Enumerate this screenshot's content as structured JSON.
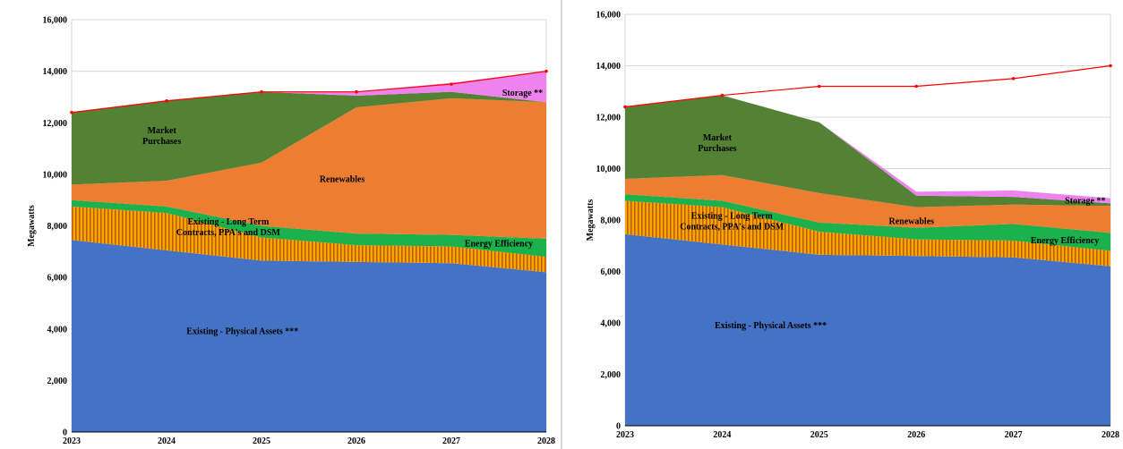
{
  "colors": {
    "physical": "#4472C4",
    "contracts_a": "#F2A900",
    "contracts_b": "#C55A11",
    "efficiency": "#1BB14C",
    "renewables": "#ED7D31",
    "market": "#548235",
    "storage": "#EE82EE",
    "load": "#FF0000",
    "grid": "#D9D9D9"
  },
  "chart_data": [
    {
      "type": "area",
      "stacked": true,
      "title": "",
      "xlabel": "",
      "ylabel": "Megawatts",
      "x": [
        "2023",
        "2024",
        "2025",
        "2026",
        "2027",
        "2028"
      ],
      "ylim": [
        0,
        16000
      ],
      "yticks": [
        "0",
        "2,000",
        "4,000",
        "6,000",
        "8,000",
        "10,000",
        "12,000",
        "14,000",
        "16,000"
      ],
      "grid": true,
      "series": [
        {
          "key": "physical",
          "values": [
            7450,
            7050,
            6650,
            6600,
            6550,
            6200
          ]
        },
        {
          "key": "contracts",
          "values": [
            1300,
            1450,
            900,
            650,
            650,
            600
          ]
        },
        {
          "key": "efficiency",
          "values": [
            250,
            250,
            450,
            450,
            450,
            700
          ]
        },
        {
          "key": "renewables",
          "values": [
            600,
            1000,
            2450,
            4900,
            5300,
            5300
          ]
        },
        {
          "key": "market",
          "values": [
            2800,
            3100,
            2750,
            450,
            250,
            0
          ]
        },
        {
          "key": "storage",
          "values": [
            0,
            0,
            0,
            150,
            350,
            1200
          ]
        }
      ],
      "load_line": {
        "values": [
          12400,
          12850,
          13200,
          13200,
          13500,
          14000
        ]
      },
      "labels": {
        "physical": "Existing - Physical Assets ***",
        "contracts": [
          "Existing - Long Term",
          "Contracts, PPA's and DSM"
        ],
        "efficiency": "Energy Efficiency",
        "renewables": "Renewables",
        "market": [
          "Market",
          "Purchases"
        ],
        "storage": "Storage **"
      }
    },
    {
      "type": "area",
      "stacked": true,
      "title": "",
      "xlabel": "",
      "ylabel": "Megawatts",
      "x": [
        "2023",
        "2024",
        "2025",
        "2026",
        "2027",
        "2028"
      ],
      "ylim": [
        0,
        16000
      ],
      "yticks": [
        "0",
        "2,000",
        "4,000",
        "6,000",
        "8,000",
        "10,000",
        "12,000",
        "14,000",
        "16,000"
      ],
      "grid": true,
      "series": [
        {
          "key": "physical",
          "values": [
            7450,
            7050,
            6650,
            6600,
            6550,
            6200
          ]
        },
        {
          "key": "contracts",
          "values": [
            1300,
            1450,
            900,
            650,
            650,
            600
          ]
        },
        {
          "key": "efficiency",
          "values": [
            250,
            250,
            350,
            450,
            650,
            700
          ]
        },
        {
          "key": "renewables",
          "values": [
            600,
            1000,
            1150,
            800,
            750,
            1050
          ]
        },
        {
          "key": "market",
          "values": [
            2800,
            3100,
            2750,
            450,
            300,
            100
          ]
        },
        {
          "key": "storage",
          "values": [
            0,
            0,
            0,
            150,
            250,
            200
          ]
        }
      ],
      "load_line": {
        "values": [
          12400,
          12850,
          13200,
          13200,
          13500,
          14000
        ]
      },
      "labels": {
        "physical": "Existing - Physical Assets ***",
        "contracts": [
          "Existing - Long Term",
          "Contracts, PPA's and DSM"
        ],
        "efficiency": "Energy Efficiency",
        "renewables": "Renewables",
        "market": [
          "Market",
          "Purchases"
        ],
        "storage": "Storage **"
      }
    }
  ]
}
